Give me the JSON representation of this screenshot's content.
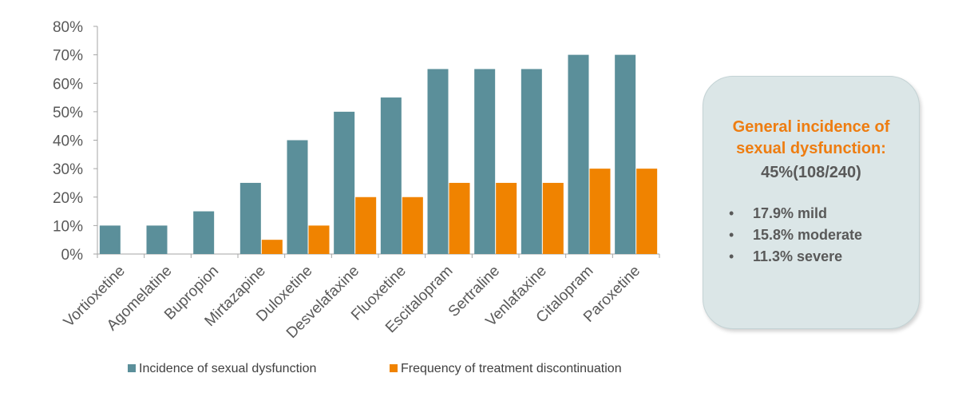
{
  "chart_data": {
    "type": "bar",
    "categories": [
      "Vortioxetine",
      "Agomelatine",
      "Bupropion",
      "Mirtazapine",
      "Duloxetine",
      "Desvelafaxine",
      "Fluoxetine",
      "Escitalopram",
      "Sertraline",
      "Venlafaxine",
      "Citalopram",
      "Paroxetine"
    ],
    "series": [
      {
        "name": "Incidence of sexual dysfunction",
        "color": "#5b8f9a",
        "values": [
          10,
          10,
          15,
          25,
          40,
          50,
          55,
          65,
          65,
          65,
          70,
          70
        ]
      },
      {
        "name": "Frequency of treatment discontinuation",
        "color": "#f08300",
        "values": [
          0,
          0,
          0,
          5,
          10,
          20,
          20,
          25,
          25,
          25,
          30,
          30
        ]
      }
    ],
    "yticks": [
      "0%",
      "10%",
      "20%",
      "30%",
      "40%",
      "50%",
      "60%",
      "70%",
      "80%"
    ],
    "ylim": [
      0,
      80
    ],
    "y_unit": "%",
    "grid": false,
    "legend_position": "bottom"
  },
  "info_box": {
    "title": "General incidence of sexual dysfunction:",
    "total": "45%(108/240)",
    "items": [
      {
        "bullet": "•",
        "text": "17.9% mild"
      },
      {
        "bullet": "•",
        "text": "15.8% moderate"
      },
      {
        "bullet": "•",
        "text": "11.3% severe"
      }
    ]
  }
}
